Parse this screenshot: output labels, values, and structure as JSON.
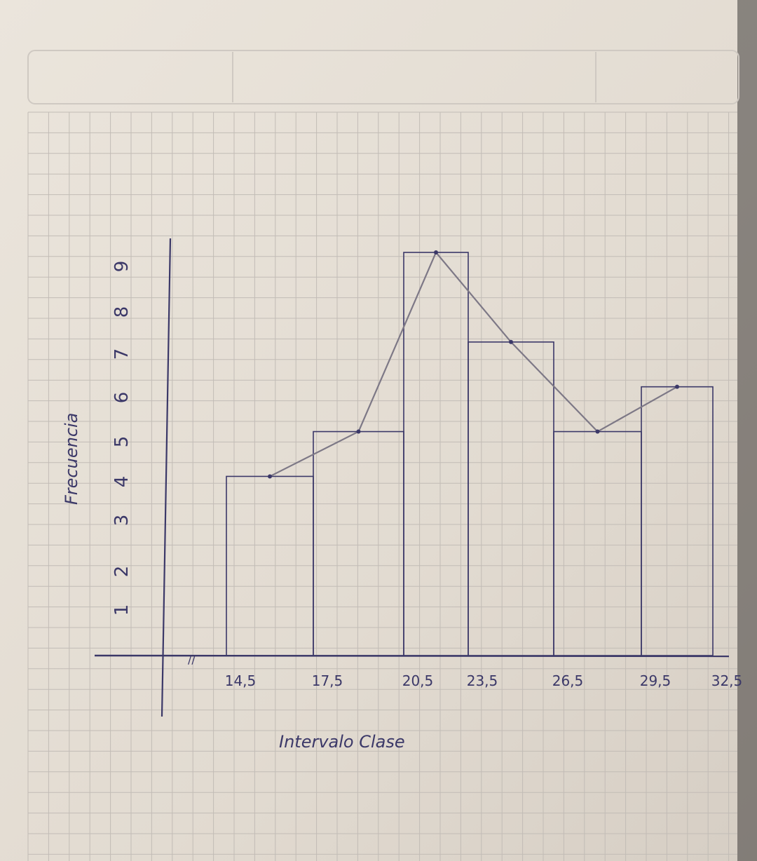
{
  "chart_data": {
    "type": "bar",
    "subtype": "histogram-with-frequency-polygon",
    "medium": "hand-drawn on squared notebook paper",
    "ylabel": "Frecuencia",
    "xlabel": "Intervalo Clase",
    "y_ticks": [
      "1",
      "2",
      "3",
      "4",
      "5",
      "6",
      "7",
      "8",
      "9"
    ],
    "x_ticks": [
      "14,5",
      "17,5",
      "20,5",
      "23,5",
      "26,5",
      "29,5",
      "32,5"
    ],
    "axis_break_mark": "//",
    "ylim": [
      0,
      9
    ],
    "bins": [
      {
        "from": 14.5,
        "to": 17.5,
        "value": 4
      },
      {
        "from": 17.5,
        "to": 20.5,
        "value": 5
      },
      {
        "from": 20.5,
        "to": 23.5,
        "value": 9
      },
      {
        "from": 23.5,
        "to": 26.5,
        "value": 7
      },
      {
        "from": 26.5,
        "to": 29.5,
        "value": 5
      },
      {
        "from": 29.5,
        "to": 32.5,
        "value": 6
      }
    ],
    "polygon": [
      {
        "x": 16,
        "y": 4
      },
      {
        "x": 19,
        "y": 5
      },
      {
        "x": 22,
        "y": 9
      },
      {
        "x": 25,
        "y": 7
      },
      {
        "x": 28,
        "y": 5
      },
      {
        "x": 31,
        "y": 6
      }
    ],
    "colors": {
      "paper": "#e4ddd3",
      "grid": "#c2bcb6",
      "ink": "#3b3868",
      "pencil": "#7d7886"
    }
  }
}
